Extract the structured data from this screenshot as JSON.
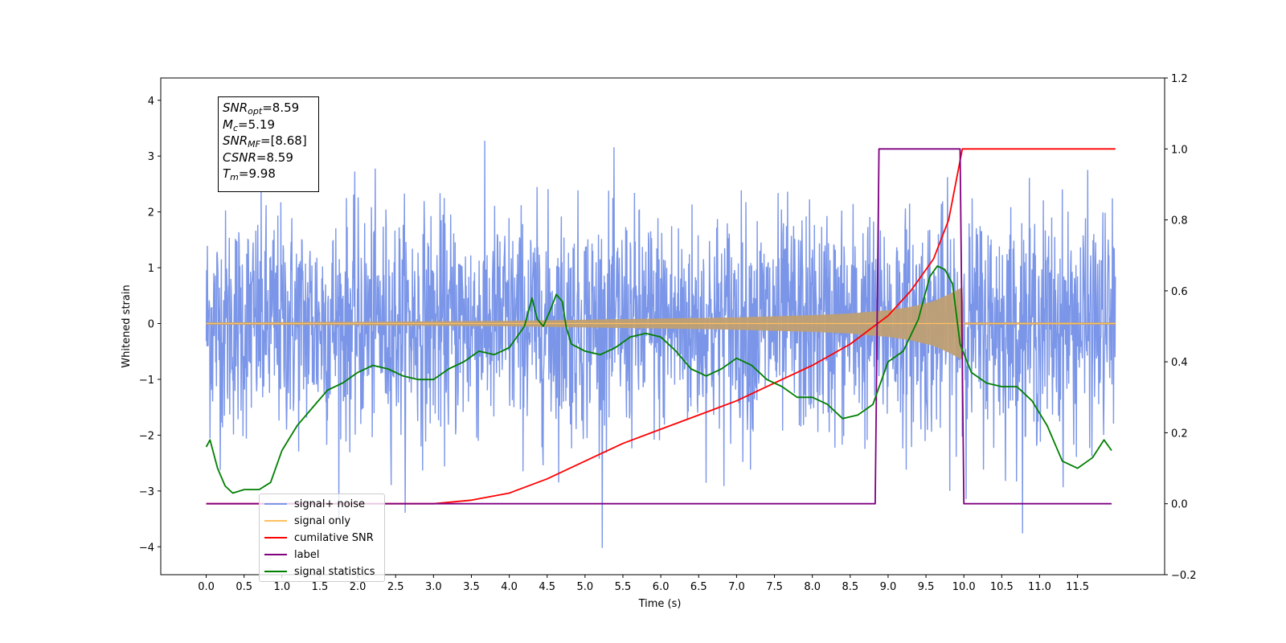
{
  "chart_data": {
    "type": "line",
    "xlabel": "Time (s)",
    "ylabel": "Whitened strain",
    "xlim": [
      -0.6,
      12.65
    ],
    "ylim": [
      -4.5,
      4.4
    ],
    "y2lim": [
      -0.2,
      1.2
    ],
    "x_ticks": [
      "0.0",
      "0.5",
      "1.0",
      "1.5",
      "2.0",
      "2.5",
      "3.0",
      "3.5",
      "4.0",
      "4.5",
      "5.0",
      "5.5",
      "6.0",
      "6.5",
      "7.0",
      "7.5",
      "8.0",
      "8.5",
      "9.0",
      "9.5",
      "10.0",
      "10.5",
      "11.0",
      "11.5"
    ],
    "y_ticks": [
      "4",
      "3",
      "2",
      "1",
      "0",
      "−1",
      "−2",
      "−3",
      "−4"
    ],
    "y2_ticks": [
      "1.2",
      "1.0",
      "0.8",
      "0.6",
      "0.4",
      "0.2",
      "0.0",
      "−0.2"
    ],
    "annotation": {
      "snr_opt": {
        "sym": "SNR",
        "sub": "opt",
        "val": "=8.59"
      },
      "mc": {
        "sym": "M",
        "sub": "c",
        "val": "=5.19"
      },
      "snr_mf": {
        "sym": "SNR",
        "sub": "MF",
        "val": "=[8.68]"
      },
      "csnr": {
        "sym": "CSNR",
        "val": "=8.59"
      },
      "tm": {
        "sym": "T",
        "sub": "m",
        "val": "=9.98"
      }
    },
    "series": [
      {
        "name": "signal+ noise",
        "color": "#7b96e8",
        "axis": "left",
        "description_range": [
          -2.0,
          2.5
        ],
        "x_range": [
          0.0,
          12.0
        ]
      },
      {
        "name": "signal only",
        "color": "#ffbf5f",
        "axis": "left",
        "envelope_x": [
          0.0,
          2.0,
          4.0,
          5.0,
          6.0,
          7.0,
          8.0,
          8.5,
          9.0,
          9.3,
          9.6,
          9.8,
          9.98,
          10.0,
          12.0
        ],
        "envelope_y": [
          0.02,
          0.03,
          0.05,
          0.07,
          0.09,
          0.11,
          0.15,
          0.18,
          0.24,
          0.3,
          0.4,
          0.52,
          0.65,
          0.02,
          0.02
        ]
      },
      {
        "name": "cumilative SNR",
        "color": "#ff0000",
        "axis": "right",
        "x": [
          0.0,
          3.0,
          3.5,
          4.0,
          4.5,
          5.0,
          5.5,
          6.0,
          6.5,
          7.0,
          7.5,
          8.0,
          8.5,
          9.0,
          9.3,
          9.6,
          9.8,
          9.98,
          10.0,
          12.0
        ],
        "y": [
          0.0,
          0.0,
          0.01,
          0.03,
          0.07,
          0.12,
          0.17,
          0.21,
          0.25,
          0.29,
          0.34,
          0.39,
          0.45,
          0.53,
          0.6,
          0.69,
          0.8,
          1.0,
          1.0,
          1.0
        ]
      },
      {
        "name": "label",
        "color": "#800080",
        "axis": "right",
        "x": [
          0.0,
          8.83,
          8.88,
          9.95,
          10.0,
          11.95
        ],
        "y": [
          0.0,
          0.0,
          1.0,
          1.0,
          0.0,
          0.0
        ]
      },
      {
        "name": "signal statistics",
        "color": "#007f00",
        "axis": "right",
        "x": [
          0.0,
          0.05,
          0.15,
          0.25,
          0.35,
          0.5,
          0.7,
          0.85,
          1.0,
          1.2,
          1.4,
          1.6,
          1.8,
          2.0,
          2.2,
          2.4,
          2.6,
          2.8,
          3.0,
          3.2,
          3.4,
          3.6,
          3.8,
          4.0,
          4.2,
          4.3,
          4.37,
          4.45,
          4.55,
          4.62,
          4.7,
          4.75,
          4.82,
          5.0,
          5.2,
          5.4,
          5.6,
          5.8,
          6.0,
          6.2,
          6.4,
          6.6,
          6.8,
          7.0,
          7.2,
          7.4,
          7.6,
          7.8,
          8.0,
          8.2,
          8.4,
          8.6,
          8.8,
          9.0,
          9.2,
          9.4,
          9.55,
          9.65,
          9.75,
          9.85,
          9.95,
          10.1,
          10.3,
          10.5,
          10.7,
          10.9,
          11.1,
          11.3,
          11.5,
          11.7,
          11.85,
          11.95
        ],
        "y": [
          0.16,
          0.18,
          0.1,
          0.05,
          0.03,
          0.04,
          0.04,
          0.06,
          0.15,
          0.22,
          0.27,
          0.32,
          0.34,
          0.37,
          0.39,
          0.38,
          0.36,
          0.35,
          0.35,
          0.38,
          0.4,
          0.43,
          0.42,
          0.44,
          0.5,
          0.58,
          0.52,
          0.5,
          0.55,
          0.59,
          0.57,
          0.5,
          0.45,
          0.43,
          0.42,
          0.44,
          0.47,
          0.48,
          0.47,
          0.43,
          0.38,
          0.36,
          0.38,
          0.41,
          0.39,
          0.35,
          0.33,
          0.3,
          0.3,
          0.28,
          0.24,
          0.25,
          0.28,
          0.4,
          0.43,
          0.52,
          0.64,
          0.67,
          0.66,
          0.62,
          0.45,
          0.37,
          0.34,
          0.33,
          0.33,
          0.29,
          0.22,
          0.12,
          0.1,
          0.13,
          0.18,
          0.15
        ]
      }
    ],
    "legend": {
      "position": "lower-left",
      "entries": [
        {
          "label": "signal+ noise",
          "color": "#7b96e8"
        },
        {
          "label": "signal only",
          "color": "#ffbf5f"
        },
        {
          "label": "cumilative SNR",
          "color": "#ff0000"
        },
        {
          "label": "label",
          "color": "#800080"
        },
        {
          "label": "signal statistics",
          "color": "#007f00"
        }
      ]
    }
  }
}
